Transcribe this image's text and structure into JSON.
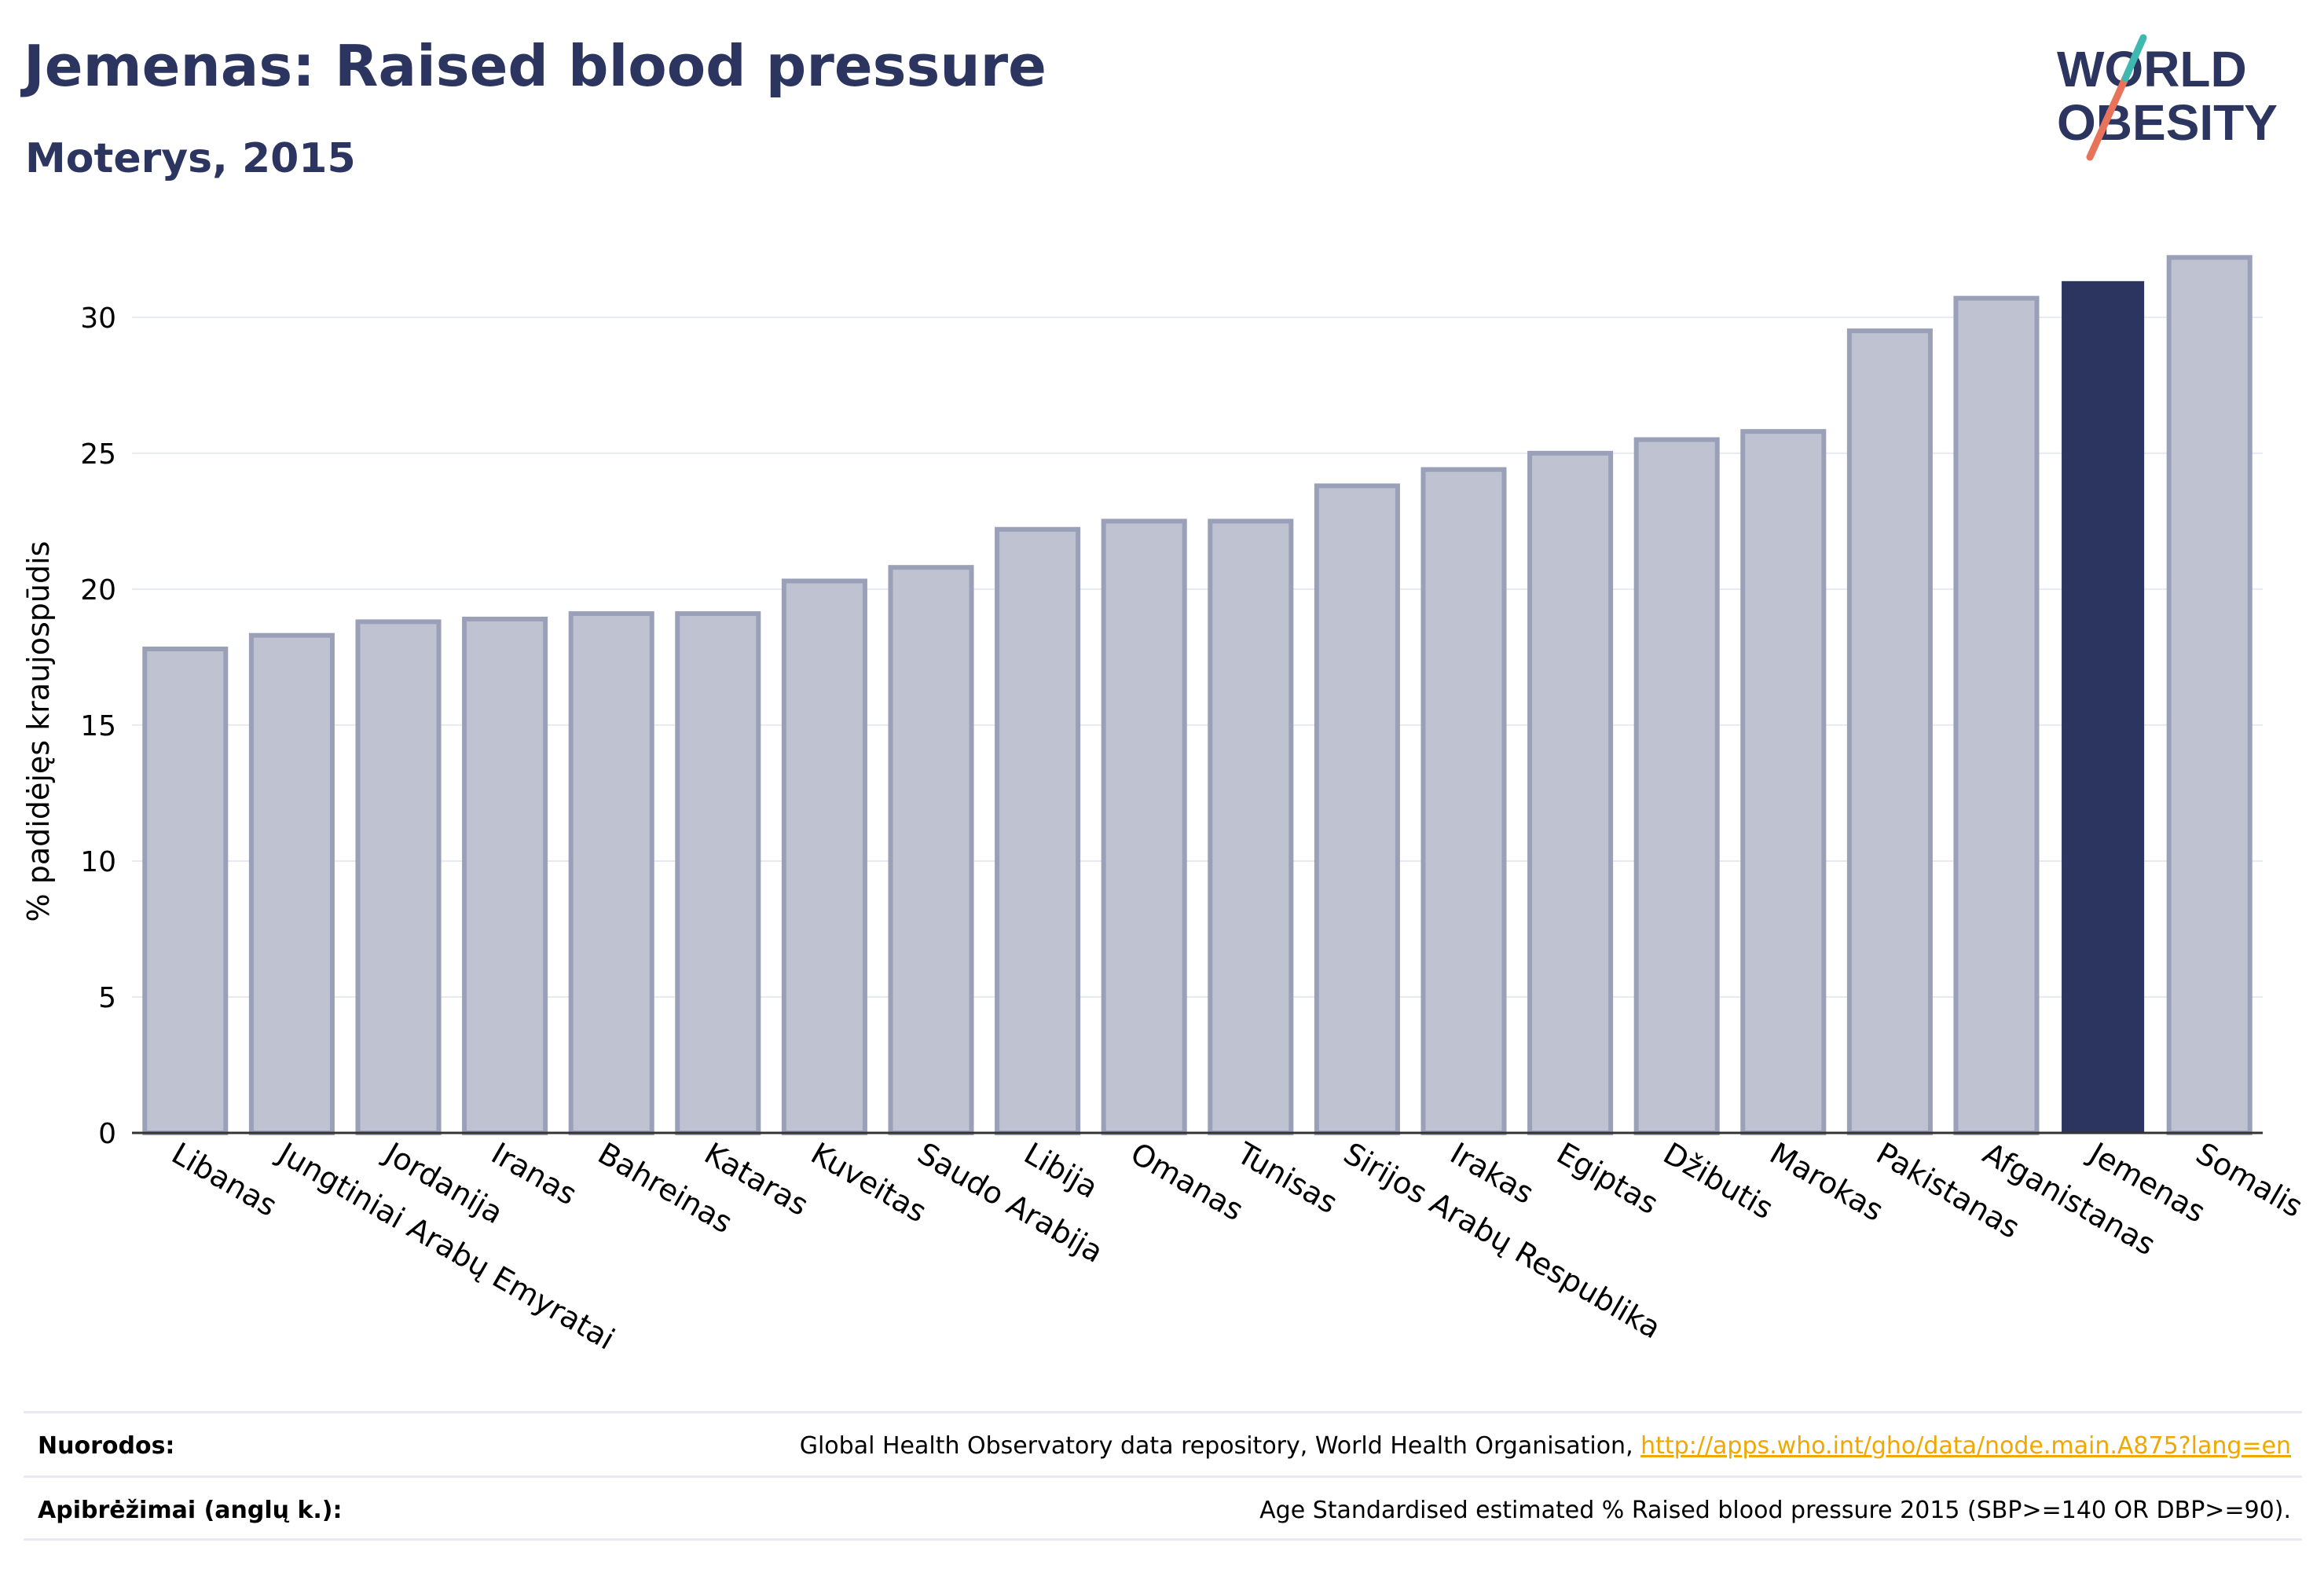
{
  "header": {
    "title": "Jemenas: Raised blood pressure",
    "subtitle": "Moterys, 2015"
  },
  "logo": {
    "line1": "WORLD",
    "line2": "OBESITY"
  },
  "footer": {
    "sources_label": "Nuorodos:",
    "sources_text": "Global Health Observatory data repository, World Health Organisation, ",
    "sources_link": "http://apps.who.int/gho/data/node.main.A875?lang=en",
    "definitions_label": "Apibrėžimai (anglų k.):",
    "definitions_text": "Age Standardised estimated % Raised blood pressure 2015 (SBP>=140 OR DBP>=90)."
  },
  "colors": {
    "highlight": "#2c3560",
    "bar_fill": "#bfc3d1",
    "bar_stroke": "#9aa0b8",
    "grid": "#e8eaf2"
  },
  "chart_data": {
    "type": "bar",
    "title": "Jemenas: Raised blood pressure",
    "subtitle": "Moterys, 2015",
    "xlabel": "",
    "ylabel": "% padidėjęs kraujospūdis",
    "ylim": [
      0,
      33
    ],
    "yticks": [
      0,
      5,
      10,
      15,
      20,
      25,
      30
    ],
    "grid": true,
    "highlight": "Jemenas",
    "categories": [
      "Libanas",
      "Jungtiniai Arabų Emyratai",
      "Jordanija",
      "Iranas",
      "Bahreinas",
      "Kataras",
      "Kuveitas",
      "Saudo Arabija",
      "Libija",
      "Omanas",
      "Tunisas",
      "Sirijos Arabų Respublika",
      "Irakas",
      "Egiptas",
      "Džibutis",
      "Marokas",
      "Pakistanas",
      "Afganistanas",
      "Jemenas",
      "Somalis"
    ],
    "values": [
      17.8,
      18.3,
      18.8,
      18.9,
      19.1,
      19.1,
      20.3,
      20.8,
      22.2,
      22.5,
      22.5,
      23.8,
      24.4,
      25.0,
      25.5,
      25.8,
      29.5,
      30.7,
      31.3,
      32.2
    ]
  }
}
